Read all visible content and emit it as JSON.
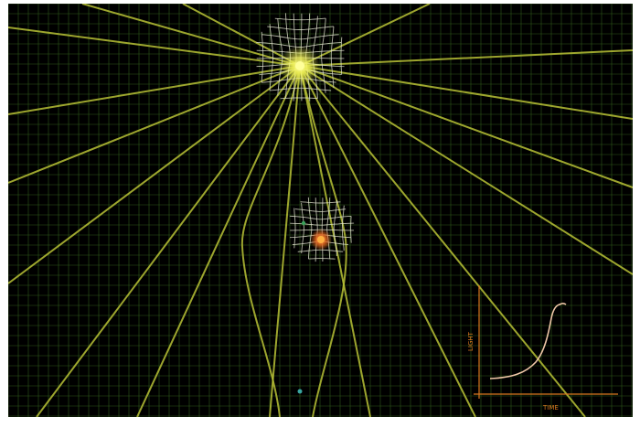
{
  "scene": {
    "background": "#000000",
    "frame_color": "#ffffff",
    "grid_color": "#2f5a1a",
    "ray_color": "#b9c236",
    "warp_color": "#e3e6cf",
    "star_color": "#f4f45a",
    "planet_color": "#e0641e",
    "moon_color": "#3aa05a",
    "probe_color": "#3aa6a0"
  },
  "inset": {
    "axis_color": "#d9781f",
    "curve_color": "#f0c8a8",
    "y_label": "LIGHT",
    "x_label": "TIME"
  }
}
